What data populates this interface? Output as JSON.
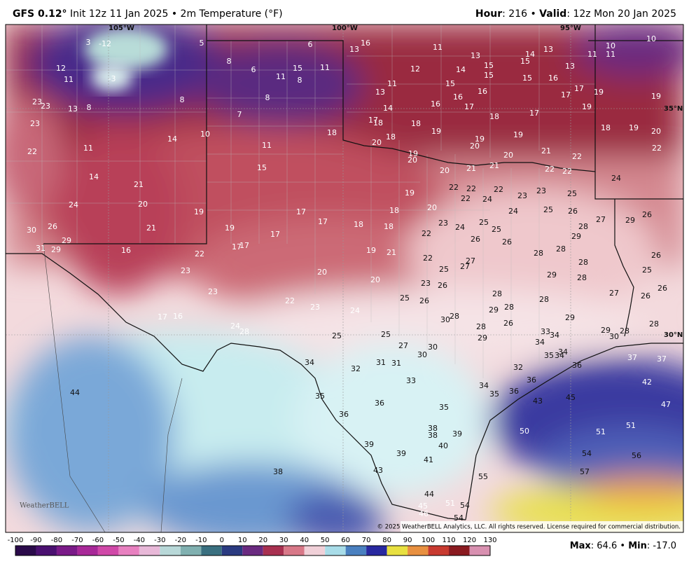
{
  "header": {
    "model": "GFS 0.12°",
    "init": " Init 12z 11 Jan 2025 • 2m Temperature (°F)",
    "hour_label": "Hour",
    "hour": ": 216 • ",
    "valid_label": "Valid",
    "valid": ": 12z Mon 20 Jan 2025"
  },
  "map": {
    "coords": [
      "105°W",
      "100°W",
      "95°W",
      "35°N",
      "30°N"
    ],
    "labels": [
      3,
      -12,
      5,
      6,
      13,
      16,
      11,
      13,
      14,
      13,
      11,
      10,
      11,
      10,
      12,
      8,
      6,
      11,
      15,
      8,
      11,
      12,
      14,
      15,
      15,
      13,
      11,
      -3,
      15,
      15,
      16,
      13,
      11,
      15,
      16,
      17,
      19,
      19,
      23,
      23,
      13,
      8,
      8,
      8,
      16,
      16,
      17,
      17,
      19,
      14,
      7,
      17,
      18,
      18,
      18,
      17,
      23,
      18,
      19,
      18,
      19,
      19,
      18,
      19,
      20,
      10,
      14,
      20,
      20,
      22,
      22,
      11,
      11,
      19,
      20,
      20,
      21,
      22,
      15,
      20,
      21,
      21,
      22,
      22,
      24,
      14,
      21,
      22,
      22,
      22,
      23,
      23,
      25,
      19,
      24,
      20,
      22,
      24,
      24,
      25,
      26,
      26,
      19,
      17,
      18,
      20,
      27,
      29,
      17,
      18,
      18,
      23,
      24,
      25,
      25,
      28,
      30,
      26,
      21,
      19,
      17,
      22,
      29,
      29,
      26,
      26,
      31,
      29,
      16,
      17,
      17,
      19,
      21,
      28,
      28,
      26,
      22,
      22,
      27,
      27,
      25,
      28,
      25,
      23,
      20,
      29,
      28,
      20,
      23,
      26,
      26,
      23,
      28,
      27,
      26,
      22,
      25,
      26,
      28,
      23,
      24,
      29,
      28,
      17,
      16,
      30,
      28,
      29,
      26,
      28,
      24,
      28,
      28,
      33,
      34,
      29,
      28,
      30,
      25,
      25,
      29,
      34,
      27,
      30,
      34,
      30,
      35,
      34,
      37,
      37,
      34,
      31,
      31,
      36,
      32,
      32,
      33,
      36,
      42,
      44,
      34,
      35,
      36,
      35,
      43,
      45,
      36,
      35,
      47,
      36,
      38,
      38,
      39,
      50,
      51,
      51,
      39,
      40,
      39,
      54,
      56,
      41,
      38,
      43,
      57,
      55,
      44,
      51,
      54,
      45,
      46,
      54
    ],
    "logo": "WeatherBELL",
    "copyright": "© 2025 WeatherBELL Analytics, LLC. All rights reserved. License required for commercial distribution."
  },
  "colorbar": {
    "ticks": [
      -100,
      -90,
      -80,
      -70,
      -60,
      -50,
      -40,
      -30,
      -20,
      -10,
      0,
      10,
      20,
      30,
      40,
      50,
      60,
      70,
      80,
      90,
      100,
      110,
      120,
      130
    ]
  },
  "footer": {
    "max_label": "Max",
    "max": ": 64.6 • ",
    "min_label": "Min",
    "min": ": -17.0"
  }
}
